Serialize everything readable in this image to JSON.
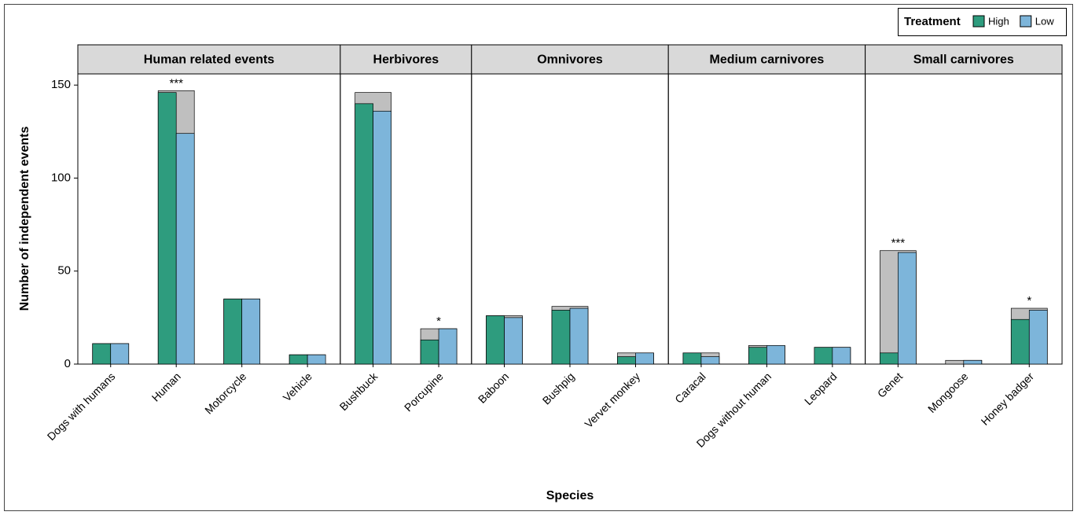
{
  "chart_data": {
    "type": "faceted-bar",
    "xlabel": "Species",
    "ylabel": "Number of independent events",
    "legend_title": "Treatment",
    "legend": "top-right",
    "series": [
      {
        "name": "High",
        "color": "#2e9c7e"
      },
      {
        "name": "Low",
        "color": "#7db5da"
      }
    ],
    "background_color": "#bfbfbf",
    "ylim": [
      0,
      156
    ],
    "yticks": [
      0,
      50,
      100,
      150
    ],
    "panels": [
      {
        "title": "Human related events",
        "categories": [
          "Dogs with humans",
          "Human",
          "Motorcycle",
          "Vehicle"
        ],
        "values": [
          [
            11,
            146,
            35,
            5
          ],
          [
            11,
            124,
            35,
            5
          ]
        ],
        "background": [
          11,
          147,
          35,
          5
        ],
        "annotations": [
          null,
          "***",
          null,
          null
        ]
      },
      {
        "title": "Herbivores",
        "categories": [
          "Bushbuck",
          "Porcupine"
        ],
        "values": [
          [
            140,
            13
          ],
          [
            136,
            19
          ]
        ],
        "background": [
          146,
          19
        ],
        "annotations": [
          null,
          "*"
        ]
      },
      {
        "title": "Omnivores",
        "categories": [
          "Baboon",
          "Bushpig",
          "Vervet monkey"
        ],
        "values": [
          [
            26,
            29,
            4
          ],
          [
            25,
            30,
            6
          ]
        ],
        "background": [
          26,
          31,
          6
        ],
        "annotations": [
          null,
          null,
          null
        ]
      },
      {
        "title": "Medium carnivores",
        "categories": [
          "Caracal",
          "Dogs without human",
          "Leopard"
        ],
        "values": [
          [
            6,
            9,
            9
          ],
          [
            4,
            10,
            9
          ]
        ],
        "background": [
          6,
          10,
          9
        ],
        "annotations": [
          null,
          null,
          null
        ]
      },
      {
        "title": "Small carnivores",
        "categories": [
          "Genet",
          "Mongoose",
          "Honey badger"
        ],
        "values": [
          [
            6,
            0,
            24
          ],
          [
            60,
            2,
            29
          ]
        ],
        "background": [
          61,
          2,
          30
        ],
        "annotations": [
          "***",
          null,
          "*"
        ]
      }
    ]
  }
}
